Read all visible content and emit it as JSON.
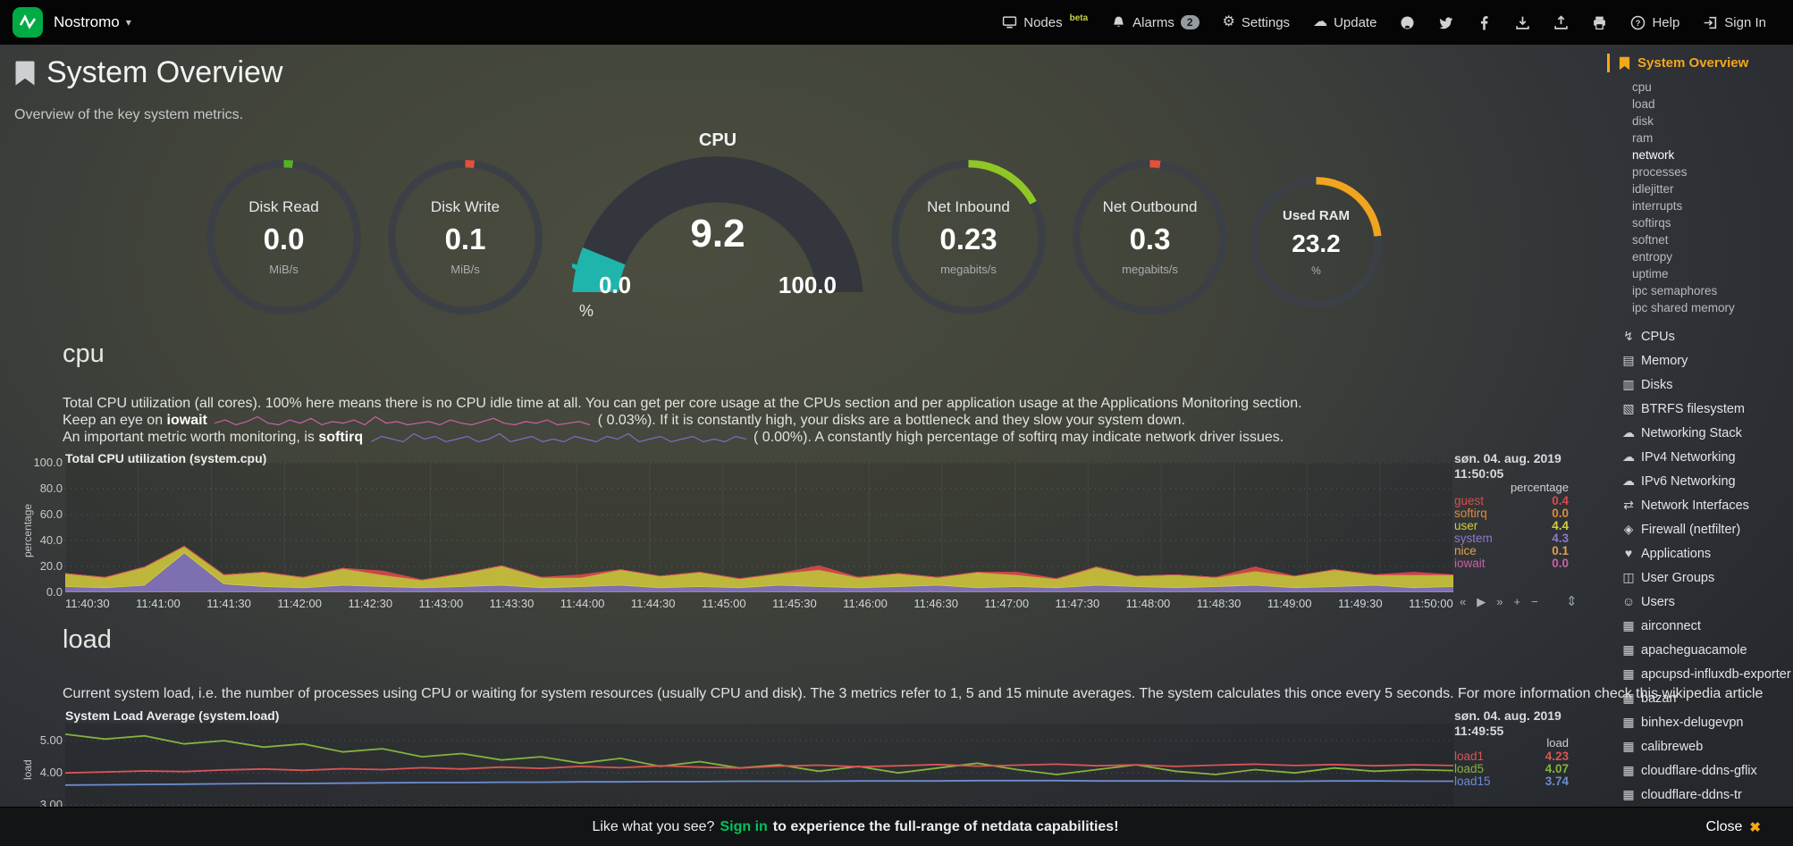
{
  "navbar": {
    "hostname": "Nostromo",
    "nodes_label": "Nodes",
    "nodes_badge": "beta",
    "alarms_label": "Alarms",
    "alarms_count": "2",
    "settings_label": "Settings",
    "update_label": "Update",
    "help_label": "Help",
    "signin_label": "Sign In"
  },
  "icons": {
    "caret-down": "▾",
    "gear": "⚙",
    "cloud": "☁",
    "close": "✖",
    "bolt": "↯",
    "memory": "▤",
    "disk": "▥",
    "folder": "▧",
    "net-cloud": "☁",
    "arrows": "⇄",
    "shield": "◈",
    "heart": "♥",
    "users": "◫",
    "user": "☺",
    "grid": "▦",
    "resize": "⇕"
  },
  "header": {
    "title": "System Overview",
    "subtitle": "Overview of the key system metrics."
  },
  "gauges": {
    "disk_read": {
      "title": "Disk Read",
      "value": "0.0",
      "unit": "MiB/s",
      "arc_color": "#52B224",
      "arc_deg": 7
    },
    "disk_write": {
      "title": "Disk Write",
      "value": "0.1",
      "unit": "MiB/s",
      "arc_color": "#E4503A",
      "arc_deg": 7
    },
    "cpu": {
      "title": "CPU",
      "value": "9.2",
      "min": "0.0",
      "max": "100.0",
      "unit": "%"
    },
    "net_inbound": {
      "title": "Net Inbound",
      "value": "0.23",
      "unit": "megabits/s",
      "arc_color": "#8FC725",
      "arc_deg": 62
    },
    "net_outbound": {
      "title": "Net Outbound",
      "value": "0.3",
      "unit": "megabits/s",
      "arc_color": "#E4503A",
      "arc_deg": 8
    },
    "used_ram": {
      "title": "Used RAM",
      "value": "23.2",
      "unit": "%",
      "arc_color": "#F1A41E",
      "arc_deg": 84
    }
  },
  "cpu_section": {
    "heading": "cpu",
    "desc1": "Total CPU utilization (all cores). 100% here means there is no CPU idle time at all. You can get per core usage at the CPUs section and per application usage at the Applications Monitoring section.",
    "iowait_pre": "Keep an eye on ",
    "iowait_word": "iowait",
    "iowait_post": "( 0.03%). If it is constantly high, your disks are a bottleneck and they slow your system down.",
    "softirq_pre": "An important metric worth monitoring, is ",
    "softirq_word": "softirq",
    "softirq_post": "( 0.00%). A constantly high percentage of softirq may indicate network driver issues.",
    "sparks": [
      {
        "name": "iowait-sparkline",
        "color": "#C961A8",
        "points": [
          1,
          3,
          0,
          2,
          5,
          1,
          0,
          3,
          1,
          4,
          0,
          2,
          1,
          3,
          0,
          5,
          1,
          2,
          0,
          1,
          2,
          0,
          3,
          1,
          0,
          2,
          4,
          1,
          0,
          2,
          1,
          3,
          0,
          1,
          2,
          0
        ]
      },
      {
        "name": "softirq-sparkline",
        "color": "#7F6BC4",
        "points": [
          0,
          2,
          1,
          0,
          3,
          1,
          2,
          0,
          1,
          2,
          0,
          1,
          3,
          0,
          1,
          2,
          0,
          1,
          0,
          2,
          1,
          0,
          2,
          1,
          3,
          0,
          1,
          2,
          0,
          1,
          2,
          0,
          1,
          0,
          2,
          1
        ]
      }
    ]
  },
  "load_section": {
    "heading": "load",
    "desc": "Current system load, i.e. the number of processes using CPU or waiting for system resources (usually CPU and disk). The 3 metrics refer to 1, 5 and 15 minute averages. The system calculates this once every 5 seconds. For more information check this wikipedia article"
  },
  "chart_data": [
    {
      "type": "area",
      "stacked": true,
      "grid_v": true,
      "title": "Total CPU utilization (system.cpu)",
      "date": "søn. 04. aug. 2019",
      "time": "11:50:05",
      "units_header": "percentage",
      "ylabel": "percentage",
      "ylim": [
        0,
        100
      ],
      "ytick_vals": [
        0,
        20,
        40,
        60,
        80,
        100
      ],
      "ytick_labels": [
        "0.0",
        "20.0",
        "40.0",
        "60.0",
        "80.0",
        "100.0"
      ],
      "xticks": [
        "11:40:30",
        "11:41:00",
        "11:41:30",
        "11:42:00",
        "11:42:30",
        "11:43:00",
        "11:43:30",
        "11:44:00",
        "11:44:30",
        "11:45:00",
        "11:45:30",
        "11:46:00",
        "11:46:30",
        "11:47:00",
        "11:47:30",
        "11:48:00",
        "11:48:30",
        "11:49:00",
        "11:49:30",
        "11:50:00"
      ],
      "legend": [
        "guest",
        "softirq",
        "user",
        "system",
        "nice",
        "iowait"
      ],
      "draw_order": [
        "nice",
        "system",
        "user",
        "softirq",
        "iowait",
        "guest"
      ],
      "toolbox": [
        "«",
        "▶",
        "»",
        "+",
        "−"
      ],
      "series": [
        {
          "name": "guest",
          "value": "0.4",
          "color": "#DB4A4A",
          "points": [
            0,
            0,
            0,
            0,
            0,
            0,
            0,
            0,
            3,
            0,
            0,
            0,
            0,
            2,
            0,
            0,
            0,
            0,
            0,
            3,
            0,
            0,
            0,
            0,
            2,
            0,
            0,
            0,
            0,
            0,
            3,
            0,
            0,
            0,
            2,
            0
          ]
        },
        {
          "name": "softirq",
          "value": "0.0",
          "color": "#E08A3C",
          "points": [
            0,
            0,
            0,
            0,
            0,
            0,
            0,
            0,
            0,
            0,
            0,
            0,
            0,
            0,
            0,
            0,
            0,
            0,
            0,
            0,
            0,
            0,
            0,
            0,
            0,
            0,
            0,
            0,
            0,
            0,
            0,
            0,
            0,
            0,
            0,
            0
          ]
        },
        {
          "name": "user",
          "value": "4.4",
          "color": "#D6CE3C",
          "points": [
            10,
            8,
            14,
            5,
            7,
            11,
            8,
            13,
            9,
            6,
            10,
            15,
            8,
            7,
            12,
            9,
            11,
            7,
            9,
            13,
            8,
            10,
            6,
            12,
            9,
            7,
            14,
            8,
            10,
            7,
            11,
            9,
            13,
            8,
            10,
            9
          ]
        },
        {
          "name": "system",
          "value": "4.3",
          "color": "#8C79C8",
          "points": [
            4,
            3,
            5,
            30,
            6,
            4,
            3,
            5,
            4,
            3,
            4,
            5,
            3,
            4,
            5,
            3,
            4,
            3,
            5,
            4,
            3,
            4,
            5,
            3,
            4,
            3,
            5,
            4,
            3,
            4,
            5,
            3,
            4,
            5,
            3,
            4
          ]
        },
        {
          "name": "nice",
          "value": "0.1",
          "color": "#E0A04E",
          "points": [
            0.5,
            0.5,
            0.5,
            0.5,
            0.5,
            0.5,
            0.5,
            0.5,
            0.5,
            0.5,
            0.5,
            0.5,
            0.5,
            0.5,
            0.5,
            0.5,
            0.5,
            0.5,
            0.5,
            0.5,
            0.5,
            0.5,
            0.5,
            0.5,
            0.5,
            0.5,
            0.5,
            0.5,
            0.5,
            0.5,
            0.5,
            0.5,
            0.5,
            0.5,
            0.5,
            0.5
          ]
        },
        {
          "name": "iowait",
          "value": "0.0",
          "color": "#C961A8",
          "points": [
            0,
            0,
            0,
            0,
            0,
            0,
            0,
            0,
            0,
            0,
            0,
            0,
            0,
            0,
            0,
            0,
            0,
            0,
            0,
            0,
            0,
            0,
            0,
            0,
            0,
            0,
            0,
            0,
            0,
            0,
            0,
            0,
            0,
            0,
            0,
            0
          ]
        }
      ]
    },
    {
      "type": "line",
      "stacked": false,
      "grid_v": false,
      "title": "System Load Average (system.load)",
      "date": "søn. 04. aug. 2019",
      "time": "11:49:55",
      "units_header": "load",
      "ylabel": "load",
      "ylim": [
        2.95,
        5.53
      ],
      "ytick_vals": [
        3,
        4,
        5
      ],
      "ytick_labels": [
        "3.00",
        "4.00",
        "5.00"
      ],
      "xticks": [],
      "legend": [
        "load1",
        "load5",
        "load15"
      ],
      "draw_order": [
        "load5",
        "load1",
        "load15"
      ],
      "toolbox": [],
      "series": [
        {
          "name": "load1",
          "value": "4.23",
          "color": "#DB5456",
          "points": [
            4.0,
            4.03,
            4.06,
            4.04,
            4.09,
            4.12,
            4.08,
            4.13,
            4.1,
            4.16,
            4.12,
            4.18,
            4.14,
            4.2,
            4.16,
            4.22,
            4.18,
            4.15,
            4.21,
            4.24,
            4.19,
            4.22,
            4.26,
            4.21,
            4.24,
            4.27,
            4.22,
            4.25,
            4.2,
            4.24,
            4.27,
            4.23,
            4.26,
            4.22,
            4.25,
            4.23
          ]
        },
        {
          "name": "load5",
          "value": "4.07",
          "color": "#84B33F",
          "points": [
            5.2,
            5.05,
            5.15,
            4.9,
            5.0,
            4.8,
            4.9,
            4.65,
            4.75,
            4.5,
            4.6,
            4.4,
            4.5,
            4.3,
            4.45,
            4.2,
            4.35,
            4.15,
            4.25,
            4.05,
            4.2,
            4.0,
            4.15,
            4.3,
            4.1,
            3.95,
            4.1,
            4.25,
            4.05,
            3.95,
            4.1,
            4.0,
            4.15,
            4.05,
            4.1,
            4.07
          ]
        },
        {
          "name": "load15",
          "value": "3.74",
          "color": "#6C8CD0",
          "points": [
            3.62,
            3.63,
            3.64,
            3.65,
            3.66,
            3.67,
            3.67,
            3.68,
            3.69,
            3.7,
            3.7,
            3.71,
            3.71,
            3.72,
            3.72,
            3.73,
            3.73,
            3.74,
            3.74,
            3.74,
            3.75,
            3.75,
            3.75,
            3.76,
            3.76,
            3.76,
            3.75,
            3.75,
            3.75,
            3.74,
            3.74,
            3.74,
            3.75,
            3.75,
            3.74,
            3.74
          ]
        }
      ]
    }
  ],
  "sidebar": {
    "active_label": "System Overview",
    "highlight_item": "network",
    "sub_items": [
      "cpu",
      "load",
      "disk",
      "ram",
      "network",
      "processes",
      "idlejitter",
      "interrupts",
      "softirqs",
      "softnet",
      "entropy",
      "uptime",
      "ipc semaphores",
      "ipc shared memory"
    ],
    "sections": [
      {
        "icon": "bolt",
        "label": "CPUs"
      },
      {
        "icon": "memory",
        "label": "Memory"
      },
      {
        "icon": "disk",
        "label": "Disks"
      },
      {
        "icon": "folder",
        "label": "BTRFS filesystem"
      },
      {
        "icon": "net-cloud",
        "label": "Networking Stack"
      },
      {
        "icon": "cloud",
        "label": "IPv4 Networking"
      },
      {
        "icon": "cloud",
        "label": "IPv6 Networking"
      },
      {
        "icon": "arrows",
        "label": "Network Interfaces"
      },
      {
        "icon": "shield",
        "label": "Firewall (netfilter)"
      },
      {
        "icon": "heart",
        "label": "Applications"
      },
      {
        "icon": "users",
        "label": "User Groups"
      },
      {
        "icon": "user",
        "label": "Users"
      }
    ],
    "apps": [
      "airconnect",
      "apacheguacamole",
      "apcupsd-influxdb-exporter",
      "bazarr",
      "binhex-delugevpn",
      "calibreweb",
      "cloudflare-ddns-gflix",
      "cloudflare-ddns-tr"
    ]
  },
  "footer": {
    "message_pre": "Like what you see?",
    "signin_label": "Sign in",
    "message_post": "to experience the full-range of netdata capabilities!",
    "close_label": "Close"
  }
}
